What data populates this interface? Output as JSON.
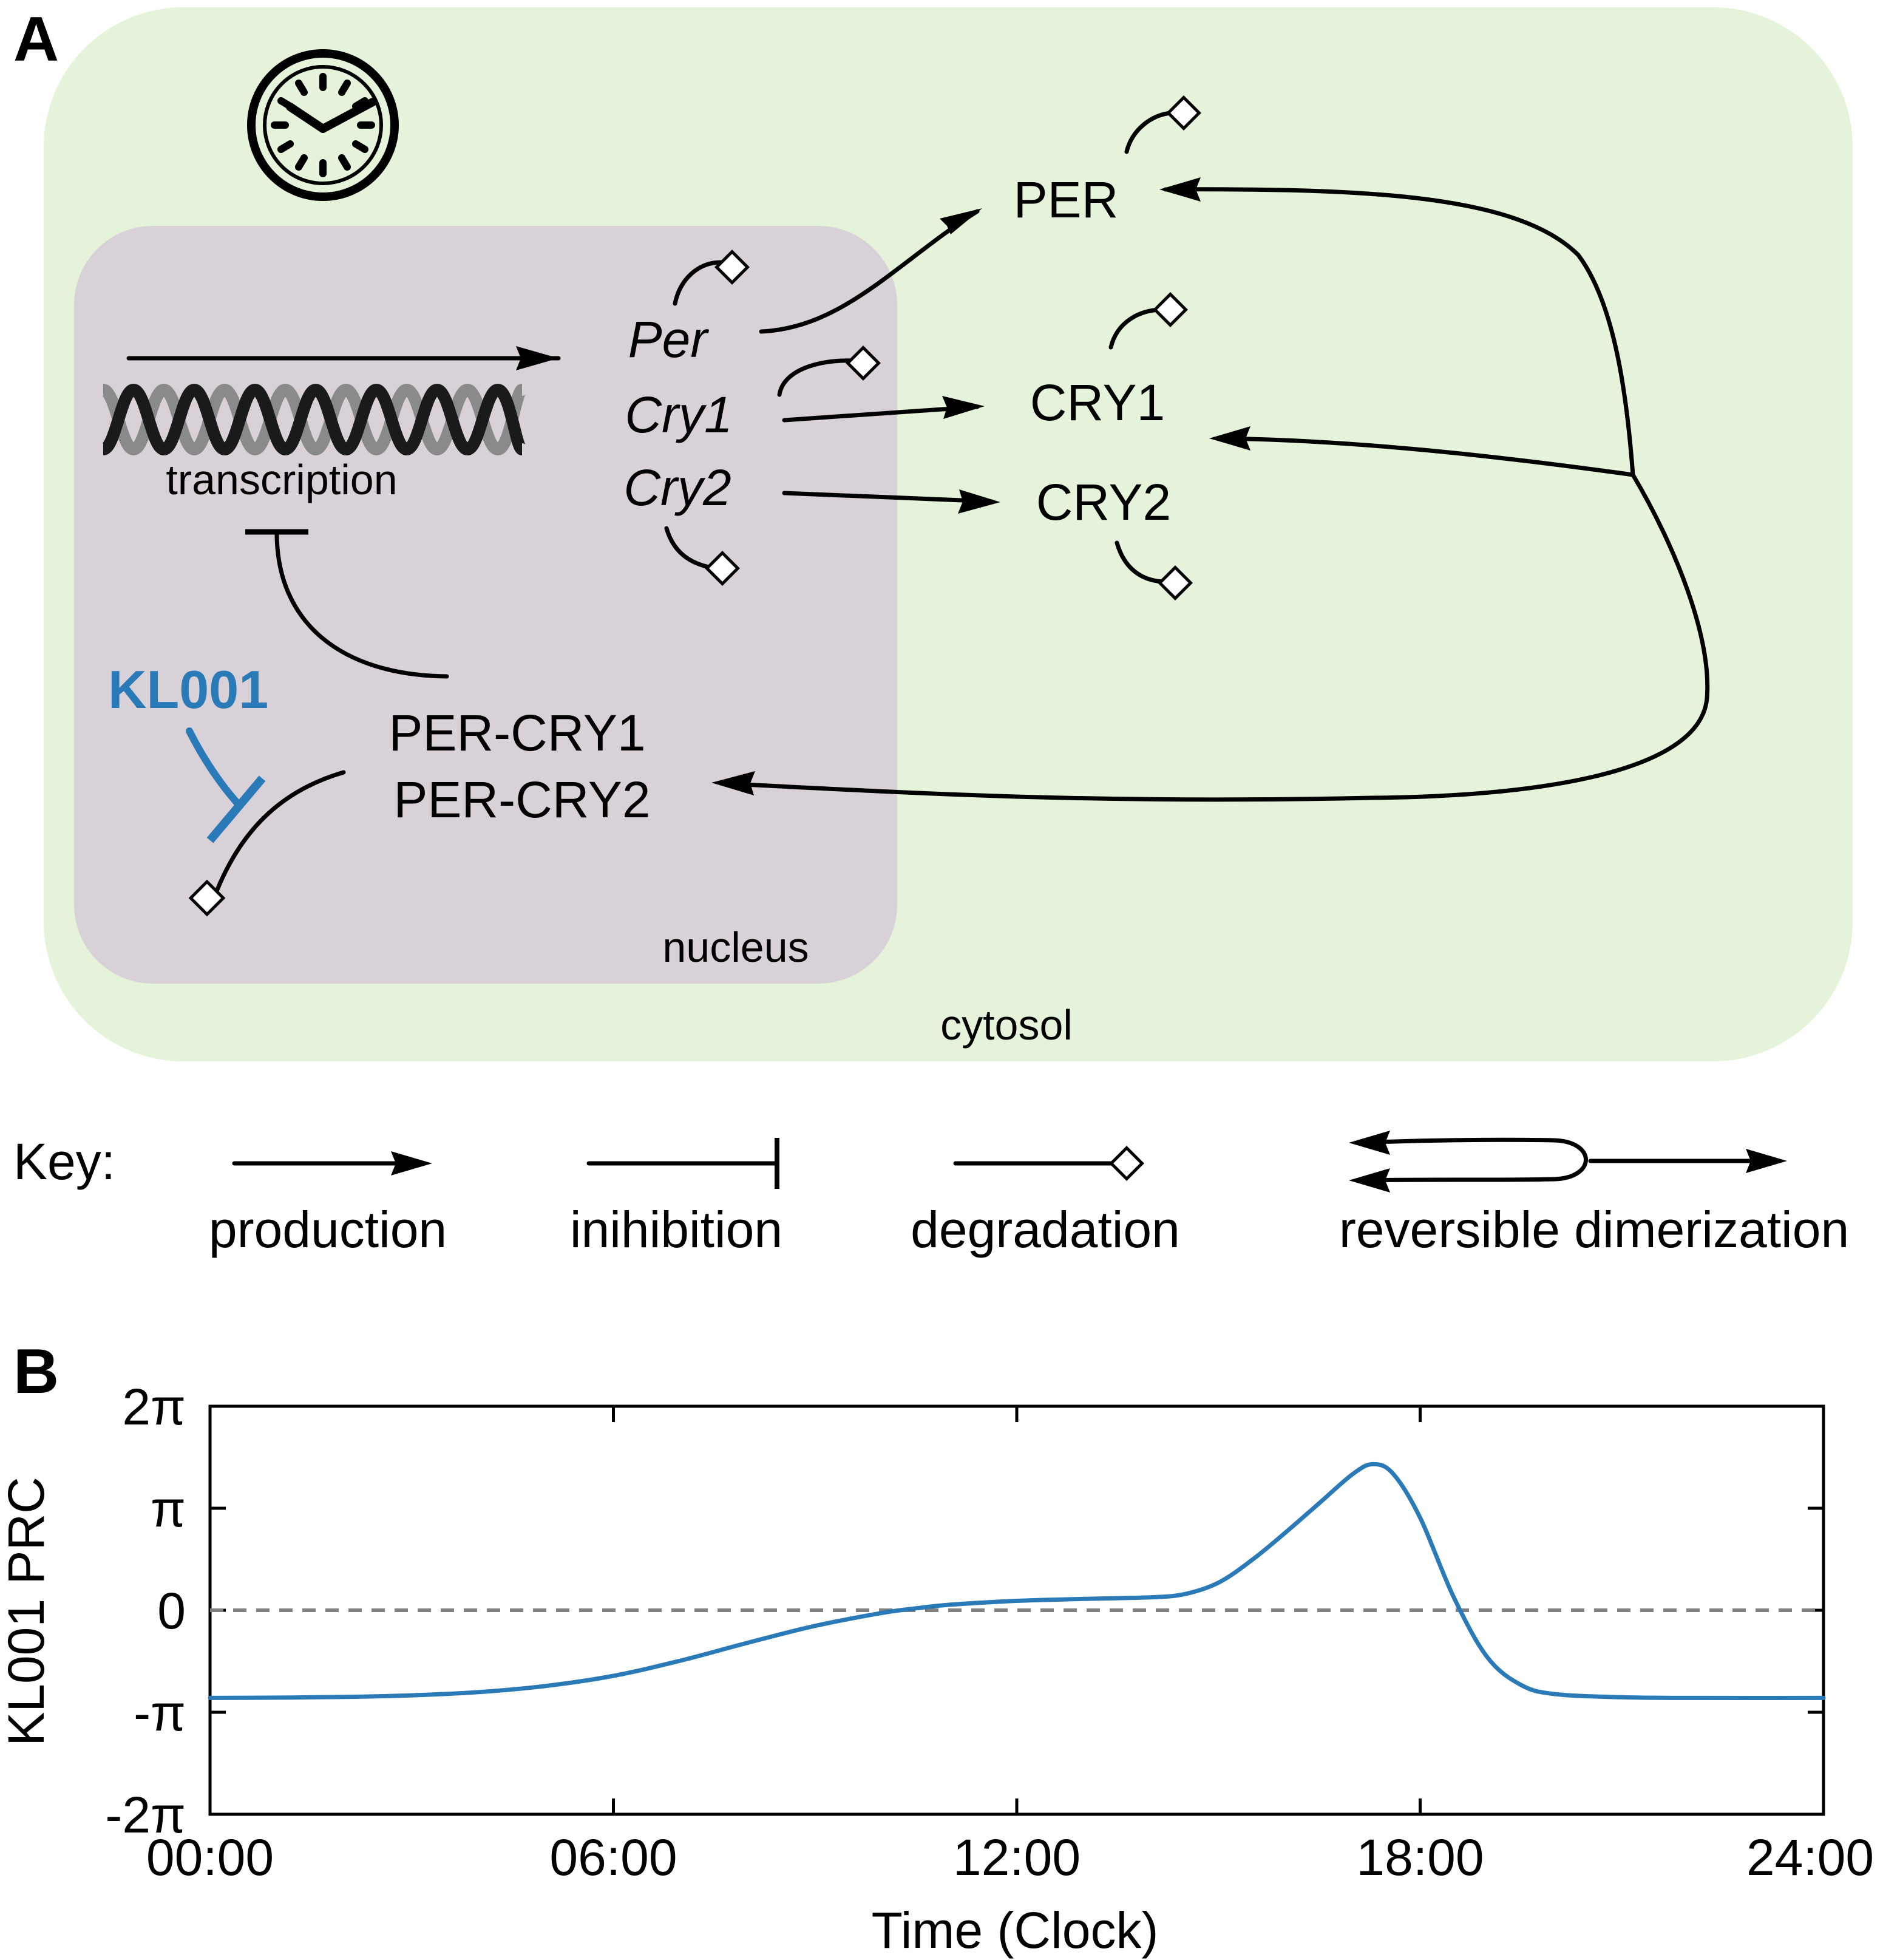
{
  "panel_a": {
    "label": "A",
    "compartments": {
      "cytosol": "cytosol",
      "nucleus": "nucleus"
    },
    "transcription_label": "transcription",
    "genes": [
      "Per",
      "Cry1",
      "Cry2"
    ],
    "proteins": [
      "PER",
      "CRY1",
      "CRY2"
    ],
    "complexes": [
      "PER-CRY1",
      "PER-CRY2"
    ],
    "drug": "KL001",
    "colors": {
      "cytosol": "#e4f3d9",
      "nucleus": "#d8d1d8",
      "drug": "#2a7ab8",
      "dna_dark": "#1a1a1a",
      "dna_light": "#8a8a8a"
    },
    "icons": [
      "clock-icon",
      "dna-helix-icon",
      "degradation-diamond-icon"
    ]
  },
  "key": {
    "title": "Key:",
    "items": [
      "production",
      "inihibition",
      "degradation",
      "reversible dimerization"
    ]
  },
  "panel_b": {
    "label": "B"
  },
  "chart_data": {
    "type": "line",
    "xlabel": "Time (Clock)",
    "ylabel": "KL001 PRC",
    "x_ticks": [
      "00:00",
      "06:00",
      "12:00",
      "18:00",
      "24:00"
    ],
    "x_tick_hours": [
      0,
      6,
      12,
      18,
      24
    ],
    "y_ticks": [
      "2π",
      "π",
      "0",
      "-π",
      "-2π"
    ],
    "y_tick_values": [
      6.2832,
      3.1416,
      0,
      -3.1416,
      -6.2832
    ],
    "xlim": [
      0,
      24
    ],
    "ylim": [
      -6.2832,
      6.2832
    ],
    "reference_line": {
      "y": 0,
      "style": "dashed",
      "color": "#808080"
    },
    "grid": false,
    "series": [
      {
        "color": "#2a7ab8",
        "x": [
          0,
          1,
          2,
          3,
          4,
          5,
          6,
          7,
          8,
          9,
          10,
          10.5,
          11,
          12,
          13,
          14,
          14.5,
          15,
          15.5,
          16,
          16.5,
          17,
          17.3,
          17.6,
          18,
          18.5,
          19,
          19.5,
          20,
          21,
          22,
          24
        ],
        "y": [
          -2.7,
          -2.69,
          -2.67,
          -2.62,
          -2.52,
          -2.33,
          -2.02,
          -1.55,
          -1.0,
          -0.48,
          -0.08,
          0.06,
          0.17,
          0.29,
          0.35,
          0.4,
          0.5,
          0.85,
          1.55,
          2.4,
          3.3,
          4.2,
          4.5,
          4.2,
          2.85,
          0.4,
          -1.45,
          -2.3,
          -2.58,
          -2.68,
          -2.7,
          -2.7
        ]
      }
    ]
  }
}
